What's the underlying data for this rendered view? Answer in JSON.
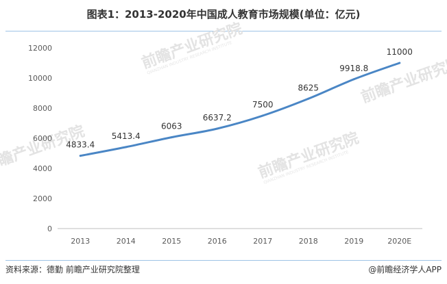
{
  "title": "图表1：2013-2020年中国成人教育市场规模(单位：亿元)",
  "source": "资料来源：德勤 前瞻产业研究院整理",
  "credit": "@前瞻经济学人APP",
  "watermark": {
    "text": "前瞻产业研究院",
    "sub": "QIANZHAN INDUSTRY RESEARCH INSTITUTE"
  },
  "chart_data": {
    "type": "line",
    "title": "图表1：2013-2020年中国成人教育市场规模(单位：亿元)",
    "xlabel": "",
    "ylabel": "",
    "categories": [
      "2013",
      "2014",
      "2015",
      "2016",
      "2017",
      "2018",
      "2019",
      "2020E"
    ],
    "series": [
      {
        "values": [
          4833.4,
          5413.4,
          6063,
          6637.2,
          7500,
          8625,
          9918.8,
          11000
        ],
        "color": "#4a86c5"
      }
    ],
    "data_labels": [
      "4833.4",
      "5413.4",
      "6063",
      "6637.2",
      "7500",
      "8625",
      "9918.8",
      "11000"
    ],
    "y_ticks": [
      "0",
      "2000",
      "4000",
      "6000",
      "8000",
      "10000",
      "12000"
    ],
    "ylim": [
      0,
      12000
    ],
    "grid": false,
    "legend": "none"
  }
}
